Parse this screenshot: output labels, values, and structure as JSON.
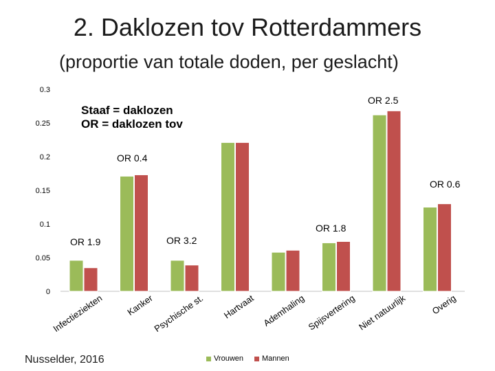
{
  "title": "2. Daklozen tov Rotterdammers",
  "subtitle": "(proportie van  totale doden, per geslacht)",
  "source": "Nusselder, 2016",
  "colors": {
    "vrouwen": "#9bbb59",
    "mannen": "#c0504d"
  },
  "chart_data": {
    "type": "bar",
    "categories": [
      "Infectieziekten",
      "Kanker",
      "Psychische st.",
      "Hartvaat",
      "Ademhaling",
      "Spijsvertering",
      "Niet natuurlijk",
      "Overig"
    ],
    "series": [
      {
        "name": "Vrouwen",
        "values": [
          0.046,
          0.171,
          0.046,
          0.221,
          0.058,
          0.072,
          0.262,
          0.125
        ]
      },
      {
        "name": "Mannen",
        "values": [
          0.035,
          0.173,
          0.039,
          0.221,
          0.061,
          0.074,
          0.268,
          0.13
        ]
      }
    ],
    "ylim": [
      0,
      0.3
    ],
    "yticks": [
      "0",
      "0.05",
      "0.1",
      "0.15",
      "0.2",
      "0.25",
      "0.3"
    ],
    "legend_position": "bottom",
    "annotations": [
      {
        "text": "Staaf = daklozen\nOR = daklozen tov"
      },
      {
        "text": "OR 1.9"
      },
      {
        "text": "OR 0.4"
      },
      {
        "text": "OR 3.2"
      },
      {
        "text": "OR 1.8"
      },
      {
        "text": "OR 2.5"
      },
      {
        "text": "OR 0.6"
      }
    ]
  }
}
